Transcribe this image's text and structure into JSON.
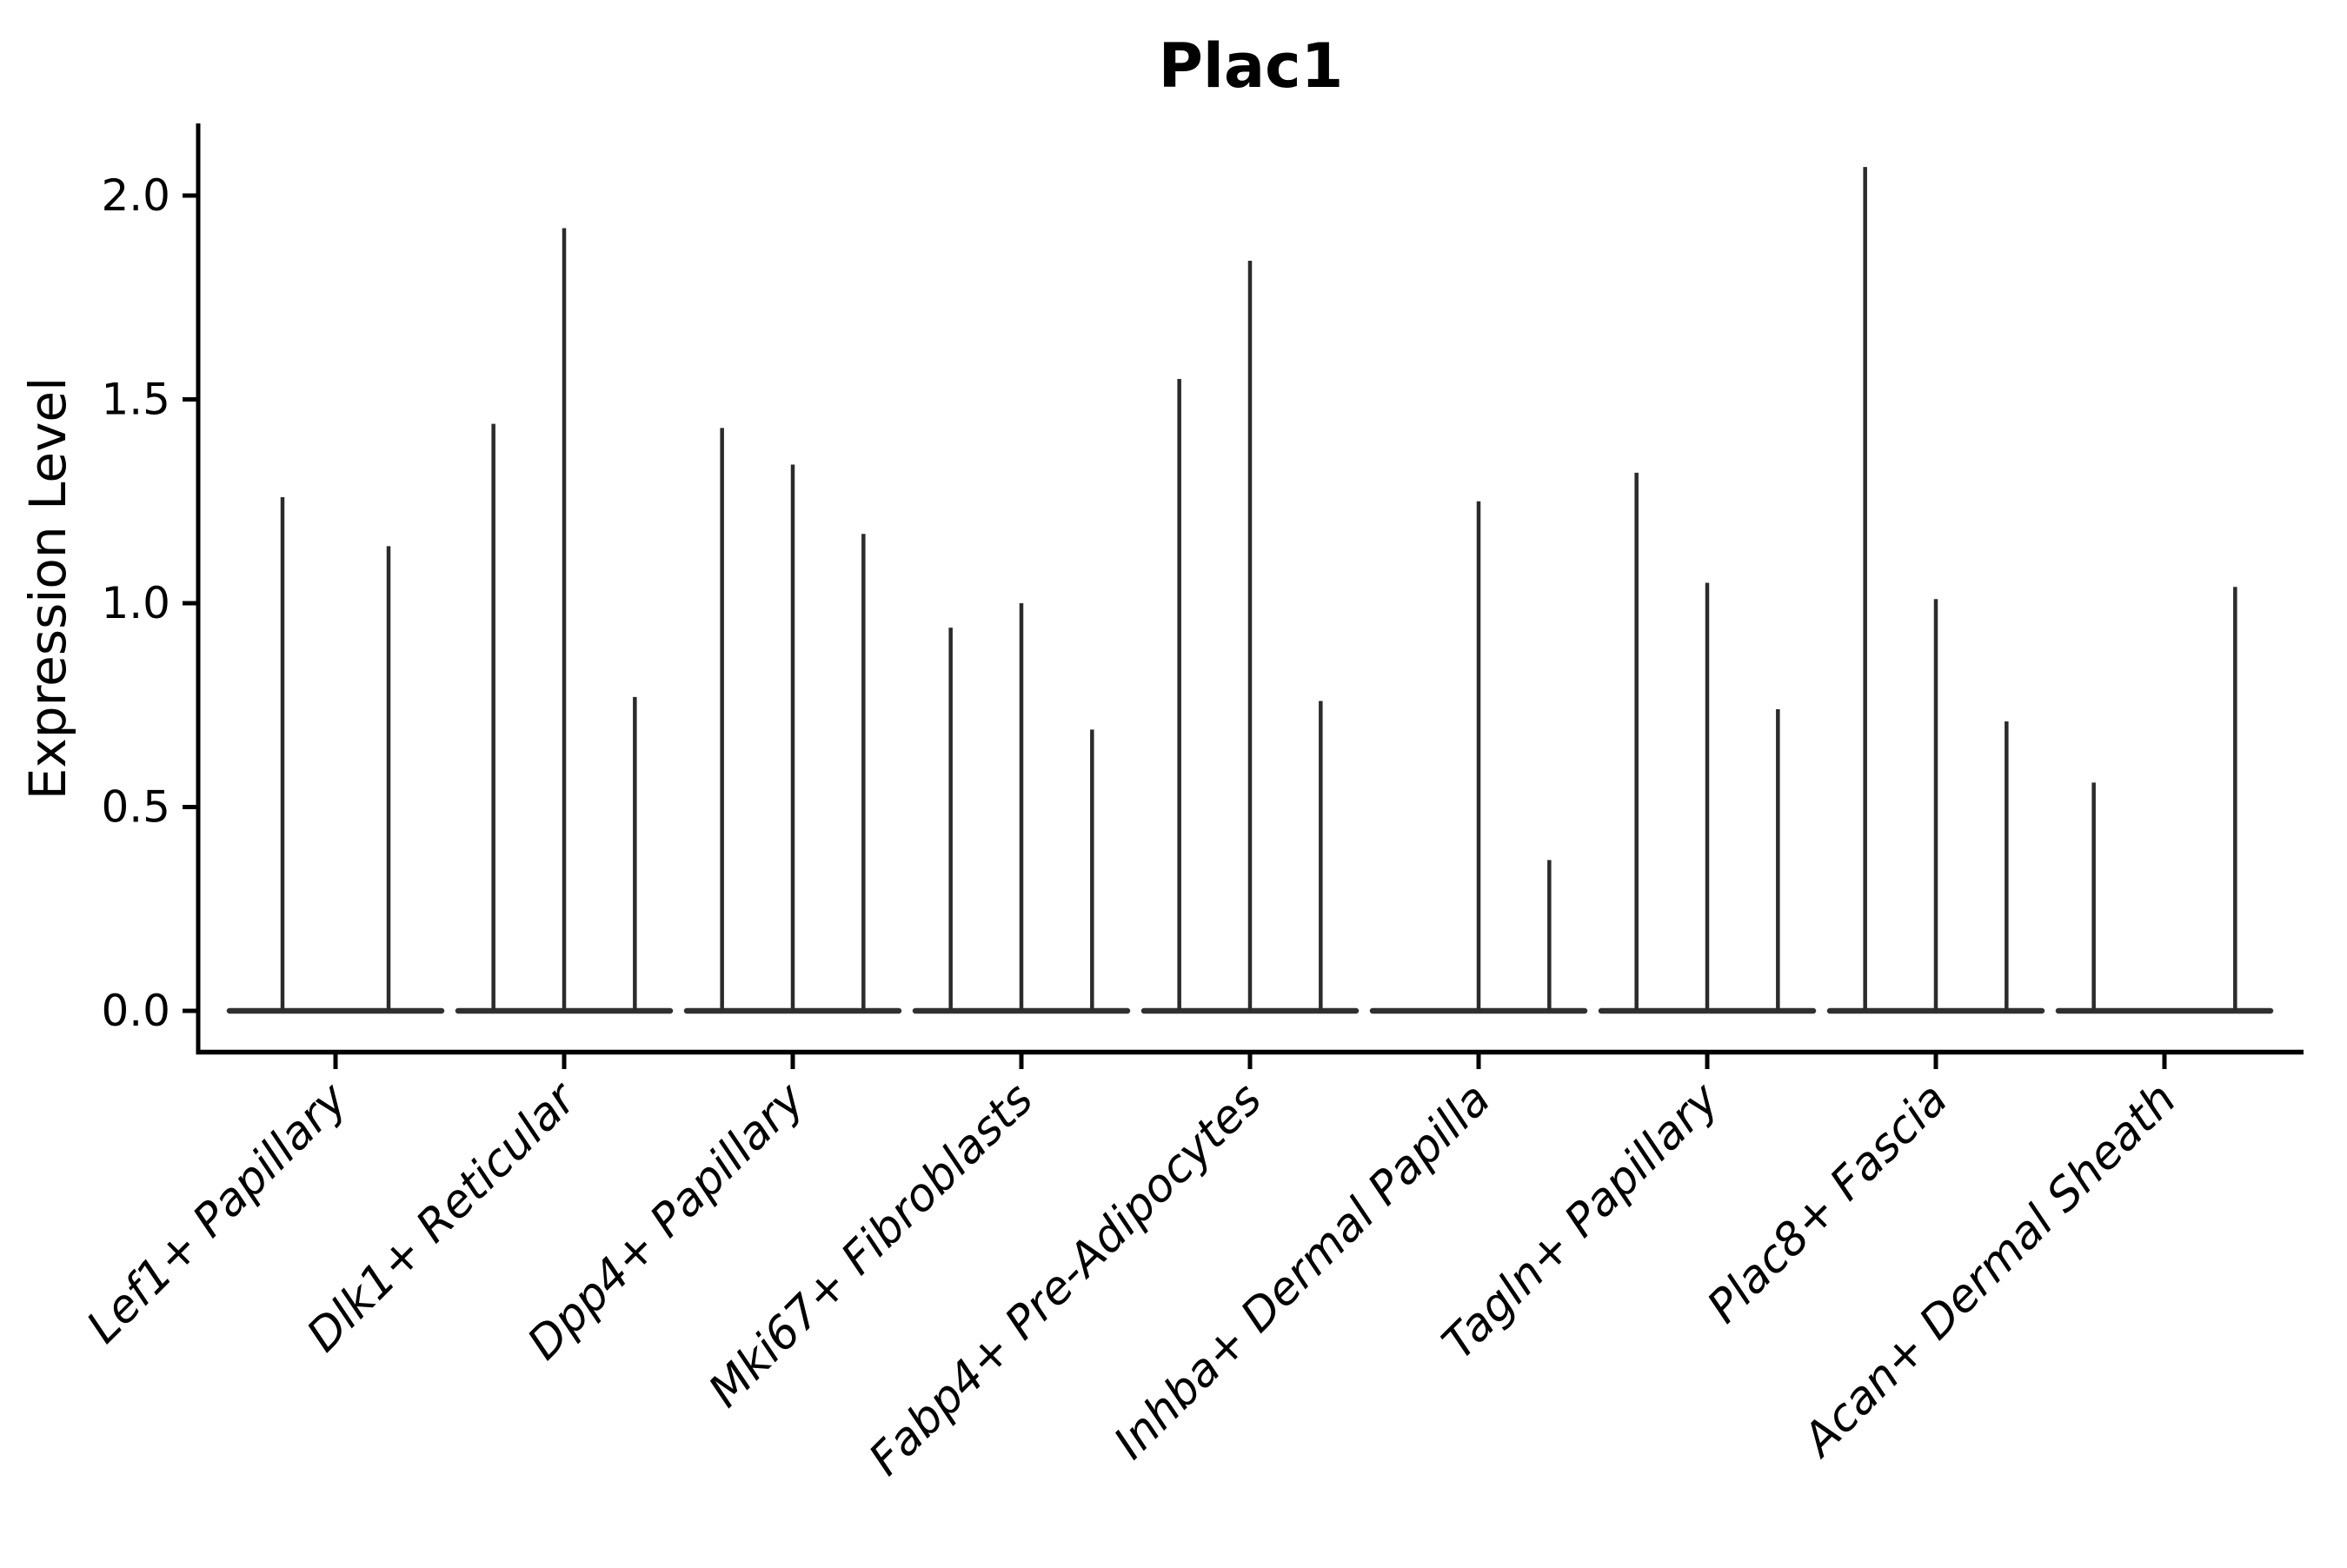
{
  "figure": {
    "background": "#ffffff"
  },
  "chart_data": {
    "type": "violin",
    "title": "Plac1",
    "ylabel": "Expression Level",
    "xlabel": "",
    "grid": false,
    "legend": "none",
    "ylim": [
      -0.11,
      2.18
    ],
    "yticks": [
      0.0,
      0.5,
      1.0,
      1.5,
      2.0
    ],
    "ytick_labels": [
      "0.0",
      "0.5",
      "1.0",
      "1.5",
      "2.0"
    ],
    "categories": [
      "Lef1+ Papillary",
      "Dlk1+ Reticular",
      "Dpp4+ Papillary",
      "Mki67+ Fibroblasts",
      "Fabp4+ Pre-Adipocytes",
      "Inhba+ Dermal Papilla",
      "Tagln+ Papillary",
      "Plac8+ Fascia",
      "Acan+ Dermal Sheath"
    ],
    "groups": [
      {
        "category": "Lef1+ Papillary",
        "slots": 2,
        "spike_maxima": [
          1.26,
          1.14
        ]
      },
      {
        "category": "Dlk1+ Reticular",
        "slots": 3,
        "spike_maxima": [
          1.44,
          1.92,
          0.77
        ]
      },
      {
        "category": "Dpp4+ Papillary",
        "slots": 3,
        "spike_maxima": [
          1.43,
          1.34,
          1.17
        ]
      },
      {
        "category": "Mki67+ Fibroblasts",
        "slots": 3,
        "spike_maxima": [
          0.94,
          1.0,
          0.69
        ]
      },
      {
        "category": "Fabp4+ Pre-Adipocytes",
        "slots": 3,
        "spike_maxima": [
          1.55,
          1.84,
          0.76
        ]
      },
      {
        "category": "Inhba+ Dermal Papilla",
        "slots": 3,
        "spike_maxima": [
          0,
          1.25,
          0.37
        ]
      },
      {
        "category": "Tagln+ Papillary",
        "slots": 3,
        "spike_maxima": [
          1.32,
          1.05,
          0.74
        ]
      },
      {
        "category": "Plac8+ Fascia",
        "slots": 3,
        "spike_maxima": [
          2.07,
          1.01,
          0.71
        ]
      },
      {
        "category": "Acan+ Dermal Sheath",
        "slots": 3,
        "spike_maxima": [
          0.56,
          0,
          1.04
        ]
      }
    ],
    "colors": {
      "spike": "#2b2b2b",
      "baseline": "#303030",
      "axis": "#000000",
      "text": "#000000"
    }
  }
}
